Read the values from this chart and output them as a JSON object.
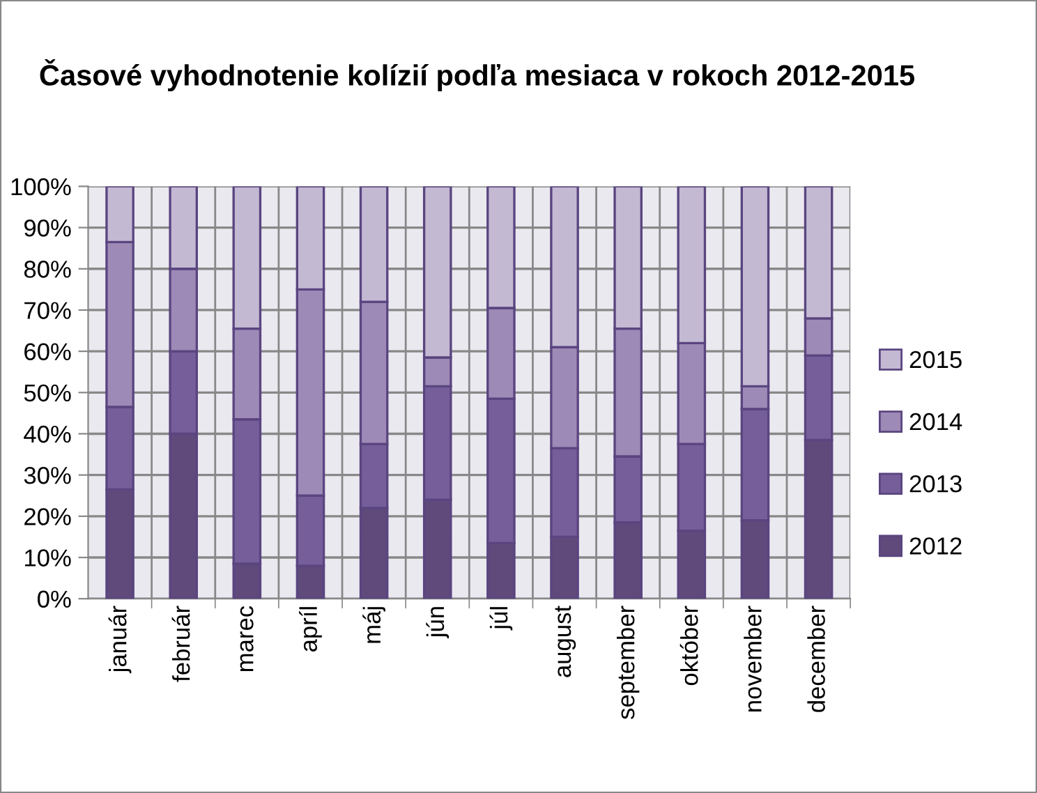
{
  "chart_data": {
    "type": "bar",
    "stacked": true,
    "title": "Časové vyhodnotenie kolízií podľa mesiaca v rokoch 2012-2015",
    "categories": [
      "január",
      "február",
      "marec",
      "apríl",
      "máj",
      "jún",
      "júl",
      "august",
      "september",
      "október",
      "november",
      "december"
    ],
    "series": [
      {
        "name": "2012",
        "color": "#604a7b",
        "values": [
          26.5,
          40,
          8.5,
          8,
          22,
          24,
          13.5,
          15,
          18.5,
          16.5,
          19,
          38.5
        ]
      },
      {
        "name": "2013",
        "color": "#765e9a",
        "values": [
          20,
          20,
          35,
          17,
          15.5,
          27.5,
          35,
          21.5,
          16,
          21,
          27,
          20.5
        ]
      },
      {
        "name": "2014",
        "color": "#9e8ab6",
        "values": [
          40,
          20,
          22,
          50,
          34.5,
          7,
          22,
          24.5,
          31,
          24.5,
          5.5,
          9
        ]
      },
      {
        "name": "2015",
        "color": "#c3b9d3",
        "values": [
          13.5,
          20,
          34.5,
          25,
          28,
          41.5,
          29.5,
          39,
          34.5,
          38,
          48.5,
          32
        ]
      }
    ],
    "ylim": [
      0,
      100
    ],
    "yticks": [
      {
        "value": 0,
        "label": "0%"
      },
      {
        "value": 10,
        "label": "10%"
      },
      {
        "value": 20,
        "label": "20%"
      },
      {
        "value": 30,
        "label": "30%"
      },
      {
        "value": 40,
        "label": "40%"
      },
      {
        "value": 50,
        "label": "50%"
      },
      {
        "value": 60,
        "label": "60%"
      },
      {
        "value": 70,
        "label": "70%"
      },
      {
        "value": 80,
        "label": "80%"
      },
      {
        "value": 90,
        "label": "90%"
      },
      {
        "value": 100,
        "label": "100%"
      }
    ],
    "grid": true,
    "legend": "right"
  }
}
